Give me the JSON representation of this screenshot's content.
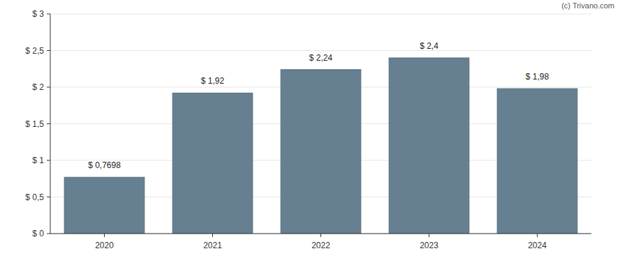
{
  "chart_data": {
    "type": "bar",
    "categories": [
      "2020",
      "2021",
      "2022",
      "2023",
      "2024"
    ],
    "values": [
      0.7698,
      1.92,
      2.24,
      2.4,
      1.98
    ],
    "value_labels": [
      "$ 0,7698",
      "$ 1,92",
      "$ 2,24",
      "$ 2,4",
      "$ 1,98"
    ],
    "color": "#667f91",
    "ylim": [
      0,
      3
    ],
    "yticks": [
      {
        "value": 0,
        "label": "$ 0"
      },
      {
        "value": 0.5,
        "label": "$ 0,5"
      },
      {
        "value": 1,
        "label": "$ 1"
      },
      {
        "value": 1.5,
        "label": "$ 1,5"
      },
      {
        "value": 2,
        "label": "$ 2"
      },
      {
        "value": 2.5,
        "label": "$ 2,5"
      },
      {
        "value": 3,
        "label": "$ 3"
      }
    ],
    "grid": true,
    "data_labels": true,
    "annotations": [
      "(c) Trivano.com"
    ]
  }
}
